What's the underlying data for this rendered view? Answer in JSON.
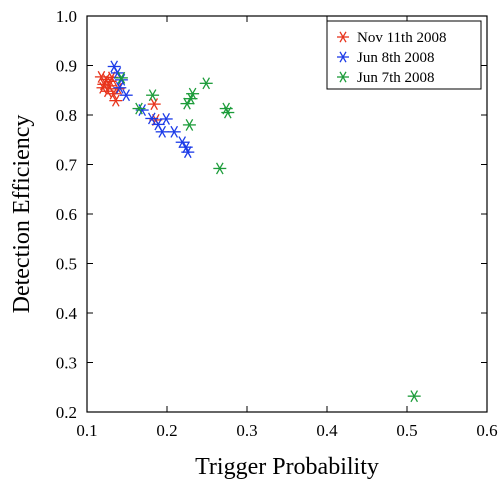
{
  "chart_data": {
    "type": "scatter",
    "title": "",
    "xlabel": "Trigger Probability",
    "ylabel": "Detection Efficiency",
    "xlim": [
      0.1,
      0.6
    ],
    "ylim": [
      0.2,
      1.0
    ],
    "xticks": [
      "0.1",
      "0.2",
      "0.3",
      "0.4",
      "0.5",
      "0.6"
    ],
    "yticks": [
      "0.2",
      "0.3",
      "0.4",
      "0.5",
      "0.6",
      "0.7",
      "0.8",
      "0.9",
      "1.0"
    ],
    "xtick_values": [
      0.1,
      0.2,
      0.3,
      0.4,
      0.5,
      0.6
    ],
    "ytick_values": [
      0.2,
      0.3,
      0.4,
      0.5,
      0.6,
      0.7,
      0.8,
      0.9,
      1.0
    ],
    "grid": false,
    "marker": "asterisk",
    "legend_position": "top-right",
    "series": [
      {
        "name": "Nov 11th 2008",
        "color": "#e8341c",
        "points": [
          [
            0.118,
            0.877
          ],
          [
            0.121,
            0.862
          ],
          [
            0.124,
            0.872
          ],
          [
            0.126,
            0.848
          ],
          [
            0.129,
            0.868
          ],
          [
            0.131,
            0.876
          ],
          [
            0.133,
            0.843
          ],
          [
            0.12,
            0.855
          ],
          [
            0.128,
            0.859
          ],
          [
            0.136,
            0.829
          ],
          [
            0.139,
            0.853
          ],
          [
            0.184,
            0.822
          ],
          [
            0.186,
            0.79
          ]
        ]
      },
      {
        "name": "Jun 8th 2008",
        "color": "#1c3be8",
        "points": [
          [
            0.134,
            0.898
          ],
          [
            0.138,
            0.885
          ],
          [
            0.143,
            0.871
          ],
          [
            0.149,
            0.84
          ],
          [
            0.169,
            0.81
          ],
          [
            0.181,
            0.793
          ],
          [
            0.189,
            0.781
          ],
          [
            0.194,
            0.766
          ],
          [
            0.199,
            0.792
          ],
          [
            0.209,
            0.766
          ],
          [
            0.219,
            0.745
          ],
          [
            0.224,
            0.735
          ],
          [
            0.226,
            0.725
          ],
          [
            0.141,
            0.855
          ]
        ]
      },
      {
        "name": "Jun 7th 2008",
        "color": "#1c9c3a",
        "points": [
          [
            0.143,
            0.875
          ],
          [
            0.165,
            0.813
          ],
          [
            0.182,
            0.84
          ],
          [
            0.225,
            0.823
          ],
          [
            0.228,
            0.78
          ],
          [
            0.23,
            0.833
          ],
          [
            0.232,
            0.843
          ],
          [
            0.249,
            0.864
          ],
          [
            0.266,
            0.692
          ],
          [
            0.274,
            0.813
          ],
          [
            0.276,
            0.805
          ],
          [
            0.509,
            0.232
          ]
        ]
      }
    ]
  }
}
